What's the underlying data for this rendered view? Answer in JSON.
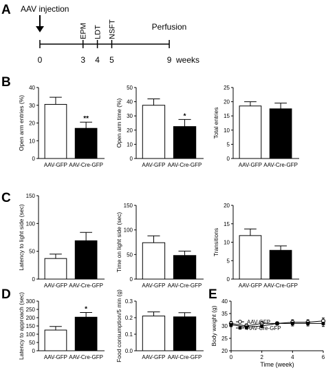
{
  "panels": {
    "A": "A",
    "B": "B",
    "C": "C",
    "D": "D",
    "E": "E"
  },
  "timeline": {
    "start_label": "AAV injection",
    "end_label": "Perfusion",
    "unit": "weeks",
    "ticks": [
      0,
      3,
      4,
      5,
      9
    ],
    "events": [
      {
        "label": "EPM",
        "week": 3
      },
      {
        "label": "LDT",
        "week": 4
      },
      {
        "label": "NSFT",
        "week": 5
      }
    ]
  },
  "style": {
    "control_fill": "#ffffff",
    "cre_fill": "#000000",
    "axis_color": "#000000"
  },
  "chart_data": [
    {
      "panel": "B",
      "type": "bar",
      "categories": [
        "AAV-GFP",
        "AAV-Cre-GFP"
      ],
      "values": [
        30.5,
        17
      ],
      "errors": [
        4,
        3.5
      ],
      "ylim": [
        0,
        40
      ],
      "yticks": [
        0,
        10,
        20,
        30,
        40
      ],
      "ylabel": "Open arm entries (%)",
      "xlabel": "",
      "significance": [
        "",
        "**"
      ]
    },
    {
      "panel": "B",
      "type": "bar",
      "categories": [
        "AAV-GFP",
        "AAV-Cre-GFP"
      ],
      "values": [
        37.5,
        22.5
      ],
      "errors": [
        4.5,
        5
      ],
      "ylim": [
        0,
        50
      ],
      "yticks": [
        0,
        10,
        20,
        30,
        40,
        50
      ],
      "ylabel": "Open arm time (%)",
      "xlabel": "",
      "significance": [
        "",
        "*"
      ]
    },
    {
      "panel": "B",
      "type": "bar",
      "categories": [
        "AAV-GFP",
        "AAV-Cre-GFP"
      ],
      "values": [
        18.5,
        17.5
      ],
      "errors": [
        1.5,
        2
      ],
      "ylim": [
        0,
        25
      ],
      "yticks": [
        0,
        5,
        10,
        15,
        20,
        25
      ],
      "ylabel": "Total entries",
      "xlabel": "",
      "significance": [
        "",
        ""
      ]
    },
    {
      "panel": "C",
      "type": "bar",
      "categories": [
        "AAV-GFP",
        "AAV-Cre-GFP"
      ],
      "values": [
        37,
        69
      ],
      "errors": [
        8,
        15
      ],
      "ylim": [
        0,
        150
      ],
      "yticks": [
        0,
        50,
        100,
        150
      ],
      "ylabel": "Latency to light side (sec)",
      "xlabel": "",
      "significance": [
        "",
        ""
      ]
    },
    {
      "panel": "C",
      "type": "bar",
      "categories": [
        "AAV-GFP",
        "AAV-Cre-GFP"
      ],
      "values": [
        74,
        48
      ],
      "errors": [
        14,
        9
      ],
      "ylim": [
        0,
        150
      ],
      "yticks": [
        0,
        50,
        100,
        150
      ],
      "ylabel": "Time on light side (sec)",
      "xlabel": "",
      "significance": [
        "",
        ""
      ]
    },
    {
      "panel": "C",
      "type": "bar",
      "categories": [
        "AAV-GFP",
        "AAV-Cre-GFP"
      ],
      "values": [
        11.8,
        7.8
      ],
      "errors": [
        1.8,
        1.2
      ],
      "ylim": [
        0,
        20
      ],
      "yticks": [
        0,
        5,
        10,
        15,
        20
      ],
      "ylabel": "Transitions",
      "xlabel": "",
      "significance": [
        "",
        ""
      ]
    },
    {
      "panel": "D",
      "type": "bar",
      "categories": [
        "AAV-GFP",
        "AAV-Cre-GFP"
      ],
      "values": [
        125,
        203
      ],
      "errors": [
        22,
        28
      ],
      "ylim": [
        0,
        300
      ],
      "yticks": [
        0,
        50,
        100,
        150,
        200,
        250,
        300
      ],
      "ylabel": "Latency to approach (sec)",
      "xlabel": "",
      "significance": [
        "",
        "*"
      ]
    },
    {
      "panel": "D",
      "type": "bar",
      "categories": [
        "AAV-GFP",
        "AAV-Cre-GFP"
      ],
      "values": [
        0.21,
        0.205
      ],
      "errors": [
        0.025,
        0.025
      ],
      "ylim": [
        0,
        0.3
      ],
      "yticks": [
        "0.0",
        "0.1",
        "0.2",
        "0.3"
      ],
      "ylabel": "Food consumption/5 min (g)",
      "xlabel": "",
      "significance": [
        "",
        ""
      ]
    },
    {
      "panel": "E",
      "type": "line",
      "x": [
        0,
        1,
        2,
        3,
        4,
        5,
        6
      ],
      "series": [
        {
          "name": "AAV-GFP",
          "marker": "open-circle",
          "values": [
            31,
            30,
            31,
            31,
            31.5,
            31.5,
            32
          ],
          "errors": [
            0.8,
            0.8,
            0.8,
            0.6,
            1,
            1,
            1.2
          ]
        },
        {
          "name": "AAV-Cre-GFP",
          "marker": "filled-square",
          "values": [
            30.5,
            29.5,
            30,
            31,
            31,
            31,
            31
          ],
          "errors": [
            0.8,
            0.8,
            0.8,
            0.6,
            1,
            1,
            1.2
          ]
        }
      ],
      "xlim": [
        0,
        6
      ],
      "ylim": [
        20,
        40
      ],
      "xticks": [
        0,
        2,
        4,
        6
      ],
      "yticks": [
        20,
        25,
        30,
        35,
        40
      ],
      "xlabel": "Time (week)",
      "ylabel": "Body weight (g)",
      "legend": "lower-left"
    }
  ]
}
